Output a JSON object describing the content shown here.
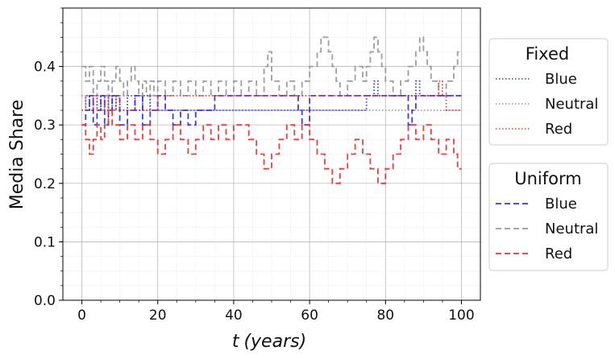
{
  "chart_data": {
    "type": "line",
    "xlabel_var": "t",
    "xlabel_unit": "(years)",
    "ylabel": "Media Share",
    "xlim": [
      -5,
      105
    ],
    "ylim": [
      0,
      0.5
    ],
    "xticks": [
      0,
      20,
      40,
      60,
      80,
      100
    ],
    "yticks": [
      0.0,
      0.1,
      0.2,
      0.3,
      0.4
    ],
    "ytick_labels": [
      "0.0",
      "0.1",
      "0.2",
      "0.3",
      "0.4"
    ],
    "grid": true,
    "legends": [
      {
        "title": "Fixed",
        "placement": "right-upper",
        "entries": [
          {
            "label": "Blue",
            "color": "#3333ee",
            "style": "dotted"
          },
          {
            "label": "Neutral",
            "color": "#999999",
            "style": "dotted"
          },
          {
            "label": "Red",
            "color": "#ee3333",
            "style": "dotted"
          }
        ]
      },
      {
        "title": "Uniform",
        "placement": "right-lower",
        "entries": [
          {
            "label": "Blue",
            "color": "#3333ee",
            "style": "dashed"
          },
          {
            "label": "Neutral",
            "color": "#999999",
            "style": "dashed"
          },
          {
            "label": "Red",
            "color": "#ee3333",
            "style": "dashed"
          }
        ]
      }
    ],
    "series": [
      {
        "name": "Blue",
        "group": "Fixed",
        "style": "dotted",
        "color": "#3333ee",
        "x": [
          0,
          1,
          2,
          3,
          4,
          5,
          6,
          7,
          8,
          9,
          10,
          12,
          14,
          16,
          18,
          20,
          25,
          30,
          35,
          40,
          45,
          50,
          55,
          60,
          65,
          70,
          75,
          77,
          78,
          80,
          85,
          88,
          89,
          90,
          95,
          100
        ],
        "y": [
          0.325,
          0.35,
          0.325,
          0.35,
          0.325,
          0.35,
          0.325,
          0.35,
          0.325,
          0.35,
          0.325,
          0.35,
          0.325,
          0.35,
          0.325,
          0.325,
          0.325,
          0.325,
          0.325,
          0.325,
          0.325,
          0.325,
          0.325,
          0.325,
          0.325,
          0.325,
          0.35,
          0.375,
          0.35,
          0.35,
          0.35,
          0.375,
          0.35,
          0.35,
          0.35,
          0.35
        ]
      },
      {
        "name": "Neutral",
        "group": "Fixed",
        "style": "dotted",
        "color": "#999999",
        "x": [
          0,
          1,
          2,
          3,
          4,
          5,
          6,
          7,
          8,
          9,
          10,
          12,
          14,
          16,
          18,
          20,
          25,
          30,
          35,
          40,
          45,
          50,
          55,
          60,
          65,
          70,
          75,
          80,
          85,
          90,
          95,
          100
        ],
        "y": [
          0.35,
          0.325,
          0.35,
          0.325,
          0.35,
          0.325,
          0.35,
          0.325,
          0.35,
          0.325,
          0.35,
          0.325,
          0.35,
          0.325,
          0.35,
          0.325,
          0.325,
          0.325,
          0.325,
          0.325,
          0.325,
          0.325,
          0.325,
          0.325,
          0.325,
          0.325,
          0.325,
          0.325,
          0.325,
          0.325,
          0.325,
          0.325
        ]
      },
      {
        "name": "Red",
        "group": "Fixed",
        "style": "dotted",
        "color": "#ee3333",
        "x": [
          0,
          1,
          2,
          3,
          4,
          5,
          6,
          7,
          8,
          9,
          10,
          12,
          14,
          16,
          18,
          20,
          25,
          30,
          35,
          40,
          45,
          50,
          55,
          60,
          65,
          70,
          75,
          80,
          85,
          90,
          94,
          95,
          96,
          100
        ],
        "y": [
          0.325,
          0.325,
          0.325,
          0.35,
          0.325,
          0.325,
          0.35,
          0.325,
          0.325,
          0.35,
          0.325,
          0.325,
          0.325,
          0.325,
          0.325,
          0.35,
          0.35,
          0.35,
          0.35,
          0.35,
          0.35,
          0.35,
          0.35,
          0.35,
          0.35,
          0.35,
          0.35,
          0.35,
          0.35,
          0.35,
          0.375,
          0.35,
          0.325,
          0.325
        ]
      },
      {
        "name": "Blue",
        "group": "Uniform",
        "style": "dashed",
        "color": "#3333ee",
        "x": [
          0,
          1,
          2,
          3,
          4,
          5,
          6,
          7,
          8,
          10,
          12,
          14,
          16,
          18,
          20,
          22,
          24,
          26,
          28,
          30,
          35,
          40,
          45,
          50,
          55,
          57,
          58,
          60,
          65,
          70,
          75,
          80,
          85,
          86,
          87,
          88,
          90,
          92,
          95,
          100
        ],
        "y": [
          0.3,
          0.325,
          0.35,
          0.3,
          0.325,
          0.35,
          0.3,
          0.325,
          0.35,
          0.3,
          0.325,
          0.35,
          0.3,
          0.325,
          0.35,
          0.325,
          0.3,
          0.325,
          0.3,
          0.325,
          0.35,
          0.35,
          0.35,
          0.35,
          0.35,
          0.325,
          0.3,
          0.35,
          0.35,
          0.35,
          0.35,
          0.35,
          0.35,
          0.3,
          0.325,
          0.35,
          0.35,
          0.35,
          0.35,
          0.35
        ]
      },
      {
        "name": "Neutral",
        "group": "Uniform",
        "style": "dashed",
        "color": "#999999",
        "x": [
          0,
          1,
          2,
          3,
          4,
          5,
          6,
          7,
          8,
          9,
          10,
          11,
          12,
          13,
          14,
          15,
          16,
          17,
          18,
          19,
          20,
          22,
          24,
          26,
          28,
          30,
          32,
          34,
          36,
          38,
          40,
          42,
          44,
          46,
          48,
          49,
          50,
          52,
          54,
          56,
          58,
          60,
          62,
          63,
          64,
          65,
          66,
          67,
          68,
          70,
          72,
          74,
          75,
          76,
          77,
          78,
          79,
          80,
          82,
          84,
          86,
          88,
          89,
          90,
          91,
          92,
          94,
          96,
          98,
          99,
          100
        ],
        "y": [
          0.4,
          0.375,
          0.4,
          0.35,
          0.375,
          0.4,
          0.375,
          0.35,
          0.375,
          0.4,
          0.375,
          0.35,
          0.375,
          0.4,
          0.375,
          0.35,
          0.375,
          0.35,
          0.375,
          0.35,
          0.375,
          0.35,
          0.375,
          0.35,
          0.375,
          0.35,
          0.375,
          0.35,
          0.375,
          0.35,
          0.375,
          0.35,
          0.375,
          0.35,
          0.4,
          0.425,
          0.375,
          0.35,
          0.375,
          0.35,
          0.375,
          0.4,
          0.425,
          0.45,
          0.45,
          0.425,
          0.4,
          0.375,
          0.35,
          0.375,
          0.4,
          0.375,
          0.4,
          0.425,
          0.45,
          0.425,
          0.4,
          0.375,
          0.35,
          0.375,
          0.4,
          0.425,
          0.45,
          0.425,
          0.4,
          0.375,
          0.35,
          0.375,
          0.4,
          0.425,
          0.425
        ]
      },
      {
        "name": "Red",
        "group": "Uniform",
        "style": "dashed",
        "color": "#ee3333",
        "x": [
          0,
          1,
          2,
          3,
          4,
          5,
          6,
          7,
          8,
          10,
          12,
          14,
          16,
          18,
          20,
          22,
          24,
          26,
          28,
          30,
          32,
          34,
          36,
          38,
          40,
          42,
          44,
          46,
          48,
          50,
          52,
          54,
          56,
          58,
          60,
          62,
          64,
          66,
          68,
          70,
          72,
          74,
          76,
          78,
          80,
          82,
          84,
          86,
          88,
          90,
          92,
          94,
          96,
          98,
          99,
          100
        ],
        "y": [
          0.3,
          0.275,
          0.25,
          0.275,
          0.3,
          0.275,
          0.3,
          0.325,
          0.3,
          0.275,
          0.3,
          0.275,
          0.3,
          0.275,
          0.25,
          0.275,
          0.3,
          0.275,
          0.25,
          0.275,
          0.3,
          0.275,
          0.3,
          0.275,
          0.3,
          0.3,
          0.275,
          0.25,
          0.225,
          0.25,
          0.275,
          0.3,
          0.275,
          0.3,
          0.275,
          0.25,
          0.225,
          0.2,
          0.225,
          0.25,
          0.275,
          0.25,
          0.225,
          0.2,
          0.225,
          0.25,
          0.275,
          0.3,
          0.275,
          0.3,
          0.275,
          0.25,
          0.275,
          0.25,
          0.225,
          0.225
        ]
      }
    ]
  }
}
